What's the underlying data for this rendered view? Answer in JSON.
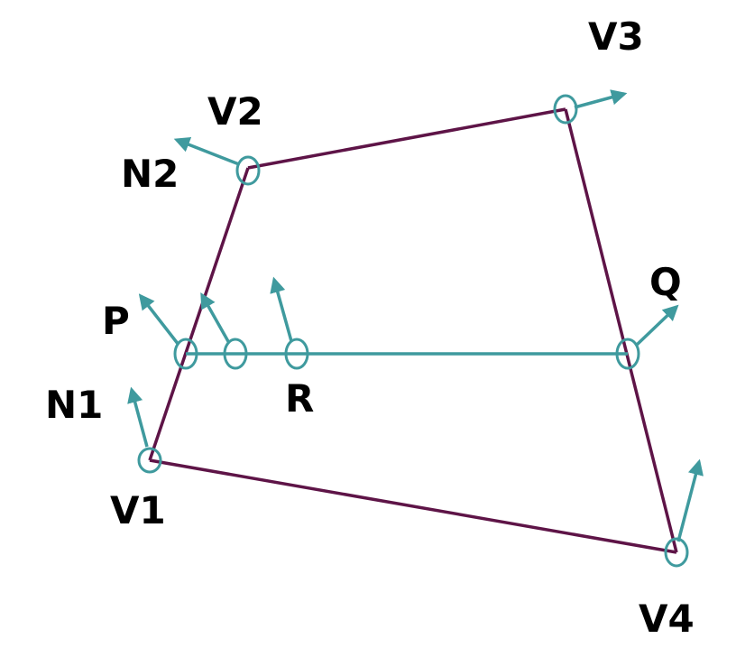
{
  "diagram": {
    "colors": {
      "polygon": "#5e1447",
      "normal": "#3f9a9e",
      "label": "#000000",
      "background": "#ffffff"
    },
    "labels": {
      "v1": "V1",
      "v2": "V2",
      "v3": "V3",
      "v4": "V4",
      "n1": "N1",
      "n2": "N2",
      "p": "P",
      "q": "Q",
      "r": "R"
    }
  }
}
